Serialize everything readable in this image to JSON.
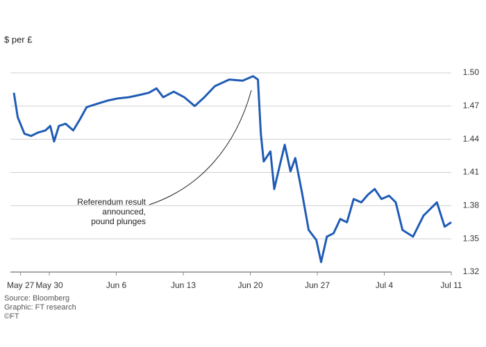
{
  "chart_data": {
    "type": "line",
    "title": "$ per £",
    "x": [
      -0.7,
      -0.3,
      0.4,
      1.1,
      1.8,
      2.6,
      3.1,
      3.5,
      4.0,
      4.7,
      5.5,
      6.2,
      6.9,
      8.0,
      9.1,
      10.2,
      11.3,
      12.4,
      13.4,
      14.2,
      14.9,
      16.0,
      17.1,
      18.2,
      19.2,
      20.3,
      21.8,
      23.2,
      24.3,
      24.8,
      25.1,
      25.4,
      26.1,
      26.5,
      27.1,
      27.6,
      28.2,
      28.7,
      29.4,
      30.1,
      30.9,
      31.4,
      32.0,
      32.7,
      33.4,
      34.1,
      34.8,
      35.6,
      36.3,
      37.0,
      37.7,
      38.5,
      39.2,
      39.9,
      41.0,
      42.1,
      42.8,
      43.5,
      44.3,
      45.0
    ],
    "series": [
      {
        "name": "$ per £",
        "color": "#1f5bb5",
        "values": [
          1.482,
          1.46,
          1.445,
          1.443,
          1.446,
          1.448,
          1.452,
          1.438,
          1.452,
          1.454,
          1.448,
          1.458,
          1.469,
          1.472,
          1.475,
          1.477,
          1.478,
          1.48,
          1.482,
          1.486,
          1.478,
          1.483,
          1.478,
          1.47,
          1.478,
          1.488,
          1.494,
          1.493,
          1.497,
          1.494,
          1.445,
          1.42,
          1.429,
          1.395,
          1.417,
          1.435,
          1.411,
          1.423,
          1.392,
          1.358,
          1.349,
          1.329,
          1.352,
          1.355,
          1.368,
          1.365,
          1.386,
          1.383,
          1.39,
          1.395,
          1.386,
          1.389,
          1.383,
          1.358,
          1.352,
          1.371,
          1.377,
          1.383,
          1.361,
          1.365
        ]
      }
    ],
    "xlim": [
      -0.7,
      45
    ],
    "xticks": [
      {
        "value": 0,
        "label": "May 27"
      },
      {
        "value": 3,
        "label": "May 30"
      },
      {
        "value": 10,
        "label": "Jun 6"
      },
      {
        "value": 17,
        "label": "Jun 13"
      },
      {
        "value": 24,
        "label": "Jun 20"
      },
      {
        "value": 31,
        "label": "Jun 27"
      },
      {
        "value": 38,
        "label": "Jul 4"
      },
      {
        "value": 45,
        "label": "Jul 11"
      }
    ],
    "ylim": [
      1.32,
      1.5
    ],
    "yticks": [
      {
        "value": 1.5,
        "label": "1.50"
      },
      1.47,
      1.44,
      1.41,
      1.38,
      1.35,
      1.32
    ],
    "grid": true,
    "annotation": [
      "Referendum result",
      "announced,",
      "pound plunges"
    ],
    "footer": [
      "Source: Bloomberg",
      "Graphic: FT research",
      "©FT"
    ]
  }
}
